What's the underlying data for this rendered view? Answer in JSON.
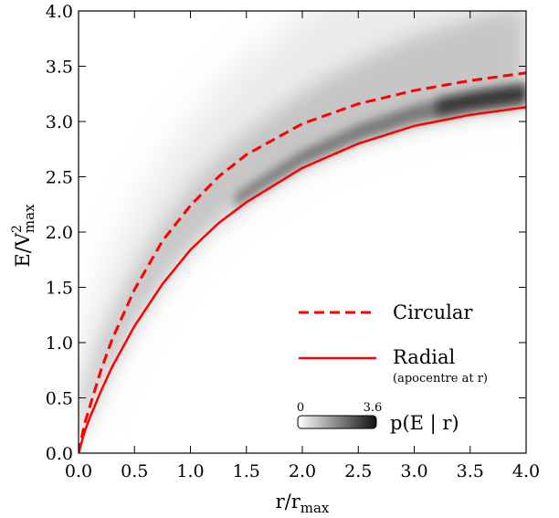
{
  "chart_data": {
    "type": "heatmap",
    "xlim": [
      0,
      4
    ],
    "ylim": [
      0,
      4
    ],
    "x_ticks": [
      "0.0",
      "0.5",
      "1.0",
      "1.5",
      "2.0",
      "2.5",
      "3.0",
      "3.5",
      "4.0"
    ],
    "y_ticks": [
      "0.0",
      "0.5",
      "1.0",
      "1.5",
      "2.0",
      "2.5",
      "3.0",
      "3.5",
      "4.0"
    ],
    "xlabel": {
      "main": "r/r",
      "sub": "max"
    },
    "ylabel": {
      "main": "E/V",
      "sup": "2",
      "sub": "max"
    },
    "series": [
      {
        "name": "Circular",
        "style": "dashed",
        "color": "#ff0000",
        "x": [
          0,
          0.05,
          0.1,
          0.2,
          0.3,
          0.5,
          0.75,
          1.0,
          1.25,
          1.5,
          2.0,
          2.5,
          3.0,
          3.5,
          4.0
        ],
        "y": [
          0.0,
          0.25,
          0.42,
          0.75,
          1.03,
          1.48,
          1.92,
          2.24,
          2.5,
          2.7,
          2.98,
          3.16,
          3.28,
          3.37,
          3.44
        ]
      },
      {
        "name": "Radial",
        "note": "(apocentre at r)",
        "style": "solid",
        "color": "#ff0000",
        "x": [
          0,
          0.05,
          0.1,
          0.2,
          0.3,
          0.5,
          0.75,
          1.0,
          1.25,
          1.5,
          2.0,
          2.5,
          3.0,
          3.5,
          4.0
        ],
        "y": [
          0.0,
          0.18,
          0.32,
          0.56,
          0.78,
          1.15,
          1.53,
          1.84,
          2.08,
          2.27,
          2.58,
          2.8,
          2.96,
          3.06,
          3.13
        ]
      }
    ],
    "colorbar": {
      "label": "p(E | r)",
      "min": "0",
      "max": "3.6",
      "colormap": "white-to-black"
    },
    "legend_position": "lower-right",
    "grid": false
  }
}
